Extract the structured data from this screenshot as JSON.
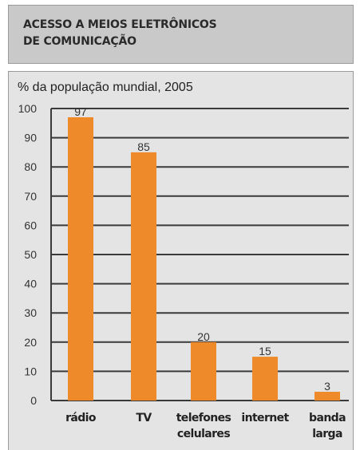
{
  "header": {
    "title_line1": "ACESSO A MEIOS ELETRÔNICOS",
    "title_line2": "DE COMUNICAÇÃO"
  },
  "chart_data": {
    "type": "bar",
    "title": "ACESSO A MEIOS ELETRÔNICOS DE COMUNICAÇÃO",
    "subtitle": "% da população mundial, 2005",
    "categories": [
      [
        "rádio"
      ],
      [
        "TV"
      ],
      [
        "telefones",
        "celulares"
      ],
      [
        "internet"
      ],
      [
        "banda",
        "larga"
      ]
    ],
    "values": [
      97,
      85,
      20,
      15,
      3
    ],
    "ylim": [
      0,
      100
    ],
    "yticks": [
      0,
      10,
      20,
      30,
      40,
      50,
      60,
      70,
      80,
      90,
      100
    ],
    "xlabel": "",
    "ylabel": "",
    "grid": true,
    "legend": "none",
    "colors": {
      "bar": "#ee8a2a",
      "grid": "#3a3a3a",
      "panel": "#e4e4e4",
      "header": "#c9c9c9"
    }
  }
}
